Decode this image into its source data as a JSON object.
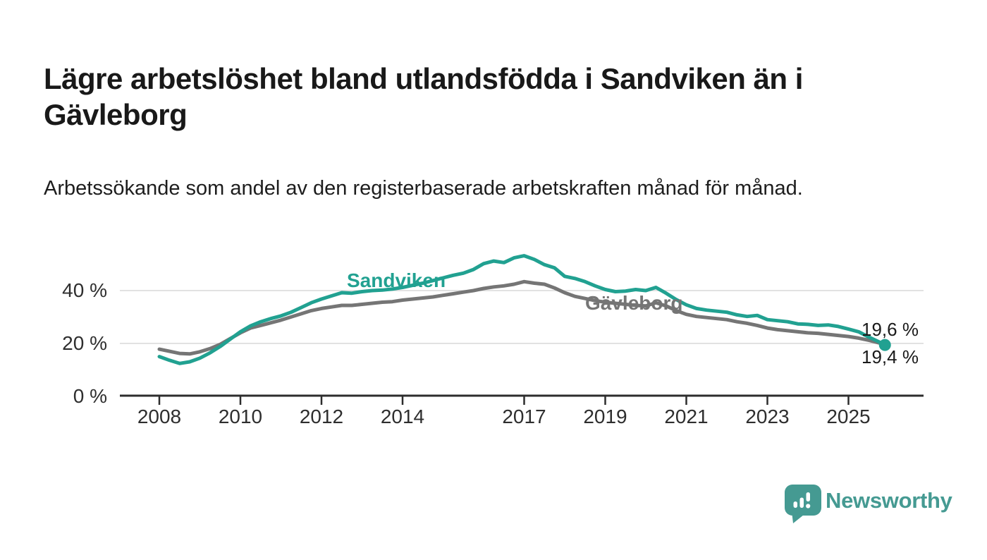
{
  "header": {
    "title": "Lägre arbetslöshet bland utlandsfödda i Sandviken än i Gävleborg",
    "subtitle": "Arbetssökande som andel av den registerbaserade arbetskraften månad för månad."
  },
  "footer": {
    "brand": "Newsworthy",
    "logo_icon": "newsworthy-speech-bubble-with-bar-chart",
    "brand_color": "#459a92"
  },
  "colors": {
    "sandviken_teal": "#21a191",
    "gavleborg_gray": "#757575",
    "grid": "#d8d8d8",
    "axis": "#2d2d2d",
    "title_text": "#191919",
    "tick_text": "#2e2e2e",
    "background": "#ffffff"
  },
  "chart_data": {
    "type": "line",
    "title": "Lägre arbetslöshet bland utlandsfödda i Sandviken än i Gävleborg",
    "subtitle": "Arbetssökande som andel av den registerbaserade arbetskraften månad för månad.",
    "xlabel": "",
    "ylabel": "",
    "unit": "%",
    "ylim": [
      0,
      58
    ],
    "xlim": [
      2007.0,
      2026.9
    ],
    "grid": "horizontal",
    "legend_position": "inline-labels",
    "y_ticks": [
      {
        "value": 0,
        "label": "0 %"
      },
      {
        "value": 20,
        "label": "20 %"
      },
      {
        "value": 40,
        "label": "40 %"
      }
    ],
    "x_ticks": [
      {
        "year": 2008,
        "label": "2008"
      },
      {
        "year": 2010,
        "label": "2010"
      },
      {
        "year": 2012,
        "label": "2012"
      },
      {
        "year": 2014,
        "label": "2014"
      },
      {
        "year": 2017,
        "label": "2017"
      },
      {
        "year": 2019,
        "label": "2019"
      },
      {
        "year": 2021,
        "label": "2021"
      },
      {
        "year": 2023,
        "label": "2023"
      },
      {
        "year": 2025,
        "label": "2025"
      }
    ],
    "x": [
      2008.0,
      2008.25,
      2008.5,
      2008.75,
      2009.0,
      2009.25,
      2009.5,
      2009.75,
      2010.0,
      2010.25,
      2010.5,
      2010.75,
      2011.0,
      2011.25,
      2011.5,
      2011.75,
      2012.0,
      2012.25,
      2012.5,
      2012.75,
      2013.0,
      2013.25,
      2013.5,
      2013.75,
      2014.0,
      2014.25,
      2014.5,
      2014.75,
      2015.0,
      2015.25,
      2015.5,
      2015.75,
      2016.0,
      2016.25,
      2016.5,
      2016.75,
      2017.0,
      2017.25,
      2017.5,
      2017.75,
      2018.0,
      2018.25,
      2018.5,
      2018.75,
      2019.0,
      2019.25,
      2019.5,
      2019.75,
      2020.0,
      2020.25,
      2020.5,
      2020.75,
      2021.0,
      2021.25,
      2021.5,
      2021.75,
      2022.0,
      2022.25,
      2022.5,
      2022.75,
      2023.0,
      2023.25,
      2023.5,
      2023.75,
      2024.0,
      2024.25,
      2024.5,
      2024.75,
      2025.0,
      2025.25,
      2025.5,
      2025.75,
      2025.9
    ],
    "series": [
      {
        "name": "Sandviken",
        "color": "#21a191",
        "end_value_label": "19,4 %",
        "values": [
          15.0,
          13.6,
          12.4,
          13.0,
          14.4,
          16.4,
          18.8,
          21.6,
          24.4,
          26.6,
          28.2,
          29.4,
          30.4,
          31.8,
          33.6,
          35.4,
          36.8,
          38.0,
          39.2,
          39.0,
          39.6,
          40.0,
          40.2,
          40.6,
          41.2,
          42.0,
          42.8,
          43.8,
          44.8,
          45.8,
          46.6,
          48.0,
          50.2,
          51.2,
          50.6,
          52.4,
          53.2,
          51.8,
          49.8,
          48.6,
          45.4,
          44.6,
          43.4,
          41.8,
          40.4,
          39.6,
          39.8,
          40.4,
          40.0,
          41.2,
          39.0,
          36.6,
          34.6,
          33.2,
          32.6,
          32.2,
          31.8,
          30.8,
          30.2,
          30.6,
          29.0,
          28.6,
          28.2,
          27.4,
          27.2,
          26.8,
          27.0,
          26.4,
          25.4,
          24.4,
          22.4,
          20.6,
          19.4
        ]
      },
      {
        "name": "Gävleborg",
        "color": "#757575",
        "end_value_label": "19,6 %",
        "values": [
          17.8,
          17.0,
          16.2,
          16.0,
          16.8,
          18.0,
          19.6,
          21.8,
          24.0,
          25.8,
          26.8,
          27.8,
          28.8,
          30.0,
          31.2,
          32.4,
          33.2,
          33.8,
          34.4,
          34.4,
          34.8,
          35.2,
          35.6,
          35.8,
          36.4,
          36.8,
          37.2,
          37.6,
          38.2,
          38.8,
          39.4,
          40.0,
          40.8,
          41.4,
          41.8,
          42.4,
          43.4,
          42.8,
          42.4,
          41.0,
          39.2,
          37.8,
          37.0,
          36.2,
          35.6,
          35.2,
          34.8,
          34.4,
          34.2,
          35.4,
          34.2,
          32.4,
          31.0,
          30.2,
          29.8,
          29.4,
          29.0,
          28.2,
          27.6,
          26.8,
          25.8,
          25.2,
          24.8,
          24.4,
          24.0,
          23.8,
          23.4,
          23.0,
          22.6,
          22.0,
          21.2,
          20.2,
          19.6
        ]
      }
    ],
    "end_labels": [
      {
        "text": "19,6 %",
        "series": "Gävleborg",
        "position": "top"
      },
      {
        "text": "19,4 %",
        "series": "Sandviken",
        "position": "bottom"
      }
    ],
    "end_marker": {
      "series": "Sandviken",
      "shape": "circle"
    }
  }
}
